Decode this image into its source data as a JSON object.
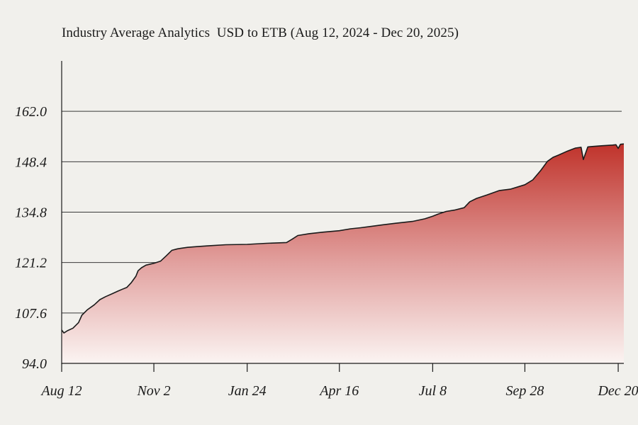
{
  "chart_data": {
    "type": "area",
    "title": "Industry Average Analytics  USD to ETB (Aug 12, 2024 - Dec 20, 2025)",
    "xlabel": "",
    "ylabel": "",
    "ylim": [
      94.0,
      175.6
    ],
    "yticks": [
      "94.0",
      "107.6",
      "121.2",
      "134.8",
      "148.4",
      "162.0"
    ],
    "xlim": [
      "2024-08-12",
      "2025-12-25"
    ],
    "xticks": [
      {
        "label": "Aug 12",
        "date": "2024-08-12"
      },
      {
        "label": "Nov 2",
        "date": "2024-11-02"
      },
      {
        "label": "Jan 24",
        "date": "2025-01-24"
      },
      {
        "label": "Apr 16",
        "date": "2025-04-16"
      },
      {
        "label": "Jul 8",
        "date": "2025-07-08"
      },
      {
        "label": "Sep 28",
        "date": "2025-09-28"
      },
      {
        "label": "Dec 20",
        "date": "2025-12-20"
      }
    ],
    "grid": "horizontal",
    "colors": {
      "line": "#1a1a1a",
      "fill_top": "#c0332b",
      "fill_bottom": "#fbf4f2",
      "grid": "#3a3a3a",
      "background": "#f1f0ec"
    },
    "series": [
      {
        "x": [
          "2024-08-12",
          "2024-08-14",
          "2024-08-17",
          "2024-08-22",
          "2024-08-27",
          "2024-08-30",
          "2024-09-04",
          "2024-09-10",
          "2024-09-15",
          "2024-09-20",
          "2024-09-26",
          "2024-10-01",
          "2024-10-05",
          "2024-10-09",
          "2024-10-13",
          "2024-10-17",
          "2024-10-19",
          "2024-10-22",
          "2024-10-26",
          "2024-11-02",
          "2024-11-08",
          "2024-11-13",
          "2024-11-18",
          "2024-11-23",
          "2024-11-27",
          "2024-12-02",
          "2024-12-10",
          "2024-12-20",
          "2025-01-05",
          "2025-01-24",
          "2025-02-10",
          "2025-02-28",
          "2025-03-05",
          "2025-03-10",
          "2025-03-20",
          "2025-04-01",
          "2025-04-16",
          "2025-04-26",
          "2025-05-05",
          "2025-05-15",
          "2025-05-25",
          "2025-06-05",
          "2025-06-20",
          "2025-07-01",
          "2025-07-08",
          "2025-07-13",
          "2025-07-20",
          "2025-07-28",
          "2025-08-05",
          "2025-08-10",
          "2025-08-16",
          "2025-08-25",
          "2025-09-05",
          "2025-09-15",
          "2025-09-28",
          "2025-10-05",
          "2025-10-12",
          "2025-10-18",
          "2025-10-23",
          "2025-10-28",
          "2025-11-05",
          "2025-11-12",
          "2025-11-17",
          "2025-11-19",
          "2025-11-23",
          "2025-11-26",
          "2025-11-30",
          "2025-12-05",
          "2025-12-10",
          "2025-12-15",
          "2025-12-18",
          "2025-12-20",
          "2025-12-22",
          "2025-12-25"
        ],
        "y": [
          103.0,
          102.2,
          102.8,
          103.5,
          105.0,
          107.0,
          108.5,
          109.8,
          111.2,
          112.0,
          112.8,
          113.5,
          114.0,
          114.5,
          115.8,
          117.5,
          119.0,
          119.8,
          120.5,
          121.0,
          121.6,
          123.0,
          124.5,
          124.9,
          125.1,
          125.3,
          125.5,
          125.7,
          126.0,
          126.1,
          126.4,
          126.6,
          127.5,
          128.5,
          129.0,
          129.4,
          129.8,
          130.3,
          130.6,
          131.0,
          131.4,
          131.8,
          132.3,
          133.0,
          133.7,
          134.3,
          135.0,
          135.4,
          136.0,
          137.6,
          138.5,
          139.4,
          140.6,
          141.0,
          142.2,
          143.5,
          146.0,
          148.5,
          149.6,
          150.2,
          151.3,
          152.1,
          152.3,
          149.0,
          152.4,
          152.5,
          152.6,
          152.7,
          152.8,
          152.9,
          153.0,
          152.0,
          153.1,
          153.2
        ]
      }
    ]
  }
}
